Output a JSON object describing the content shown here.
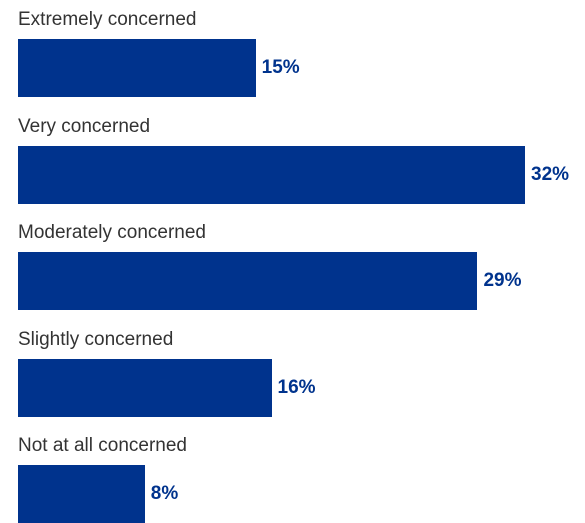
{
  "chart_data": {
    "type": "bar",
    "orientation": "horizontal",
    "categories": [
      "Extremely concerned",
      "Very concerned",
      "Moderately concerned",
      "Slightly concerned",
      "Not at all concerned"
    ],
    "values": [
      15,
      32,
      29,
      16,
      8
    ],
    "value_labels": [
      "15%",
      "32%",
      "29%",
      "16%",
      "8%"
    ],
    "unit": "%",
    "title": "",
    "xlabel": "",
    "ylabel": "",
    "xlim": [
      0,
      32
    ],
    "grid": false,
    "legend": "none",
    "bar_color": "#00338d",
    "label_color": "#00338d"
  }
}
